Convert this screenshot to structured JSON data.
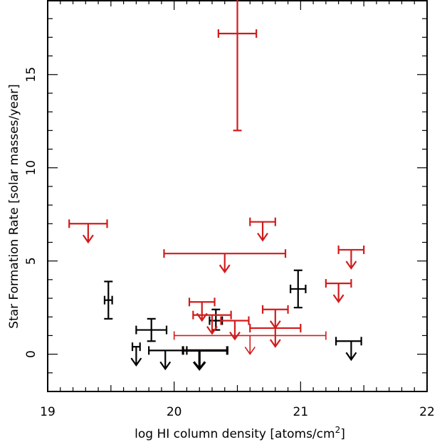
{
  "chart_data": {
    "type": "scatter",
    "title": "",
    "xlabel": "log HI column density [atoms/cm",
    "xlabel_superscript": "2",
    "xlabel_suffix": "]",
    "ylabel": "Star Formation Rate [solar masses/year]",
    "xlim": [
      19,
      22
    ],
    "ylim": [
      -2,
      19
    ],
    "xticks": [
      19,
      20,
      21,
      22
    ],
    "xtick_labels": [
      "19",
      "20",
      "21",
      "22"
    ],
    "yticks": [
      0,
      5,
      10,
      15
    ],
    "ytick_labels": [
      "0",
      "5",
      "10",
      "15"
    ],
    "grid": false,
    "colors": {
      "black_series": "#000000",
      "red_series": "#d01c1c"
    },
    "series": [
      {
        "name": "black",
        "color": "#000000",
        "points": [
          {
            "x": 19.48,
            "y": 2.9,
            "xerr": [
              0.03,
              0.03
            ],
            "yerr": [
              1.0,
              1.0
            ],
            "upper_limit": false
          },
          {
            "x": 19.82,
            "y": 1.3,
            "xerr": [
              0.12,
              0.12
            ],
            "yerr": [
              0.6,
              0.6
            ],
            "upper_limit": false
          },
          {
            "x": 20.33,
            "y": 1.8,
            "xerr": [
              0.05,
              0.05
            ],
            "yerr": [
              0.5,
              0.6
            ],
            "upper_limit": false
          },
          {
            "x": 20.98,
            "y": 3.5,
            "xerr": [
              0.06,
              0.06
            ],
            "yerr": [
              1.0,
              1.0
            ],
            "upper_limit": false
          },
          {
            "x": 19.7,
            "y": 0.4,
            "xerr": [
              0.03,
              0.03
            ],
            "upper_limit": true,
            "bold": false
          },
          {
            "x": 19.93,
            "y": 0.2,
            "xerr": [
              0.13,
              0.17
            ],
            "upper_limit": true,
            "bold": false
          },
          {
            "x": 20.2,
            "y": 0.2,
            "xerr": [
              0.13,
              0.22
            ],
            "upper_limit": true,
            "bold": true
          },
          {
            "x": 21.4,
            "y": 0.7,
            "xerr": [
              0.12,
              0.08
            ],
            "upper_limit": true,
            "bold": false
          }
        ]
      },
      {
        "name": "red",
        "color": "#d01c1c",
        "points": [
          {
            "x": 20.5,
            "y": 17.2,
            "xerr": [
              0.15,
              0.15
            ],
            "yerr": [
              5.2,
              2.0
            ],
            "upper_limit": false
          },
          {
            "x": 19.32,
            "y": 7.0,
            "xerr": [
              0.15,
              0.15
            ],
            "upper_limit": true
          },
          {
            "x": 20.7,
            "y": 7.1,
            "xerr": [
              0.1,
              0.1
            ],
            "upper_limit": true
          },
          {
            "x": 20.4,
            "y": 5.4,
            "xerr": [
              0.48,
              0.48
            ],
            "upper_limit": true
          },
          {
            "x": 21.4,
            "y": 5.6,
            "xerr": [
              0.1,
              0.1
            ],
            "upper_limit": true
          },
          {
            "x": 21.3,
            "y": 3.8,
            "xerr": [
              0.1,
              0.1
            ],
            "upper_limit": true
          },
          {
            "x": 20.22,
            "y": 2.8,
            "xerr": [
              0.1,
              0.1
            ],
            "upper_limit": true
          },
          {
            "x": 20.8,
            "y": 2.4,
            "xerr": [
              0.1,
              0.1
            ],
            "upper_limit": true
          },
          {
            "x": 20.3,
            "y": 2.1,
            "xerr": [
              0.15,
              0.15
            ],
            "upper_limit": true
          },
          {
            "x": 20.48,
            "y": 1.8,
            "xerr": [
              0.11,
              0.11
            ],
            "upper_limit": true
          },
          {
            "x": 20.8,
            "y": 1.4,
            "xerr": [
              0.2,
              0.2
            ],
            "upper_limit": true
          },
          {
            "x": 20.6,
            "y": 1.0,
            "xerr": [
              0.6,
              0.6
            ],
            "upper_limit": true,
            "thin": true
          }
        ]
      }
    ]
  }
}
